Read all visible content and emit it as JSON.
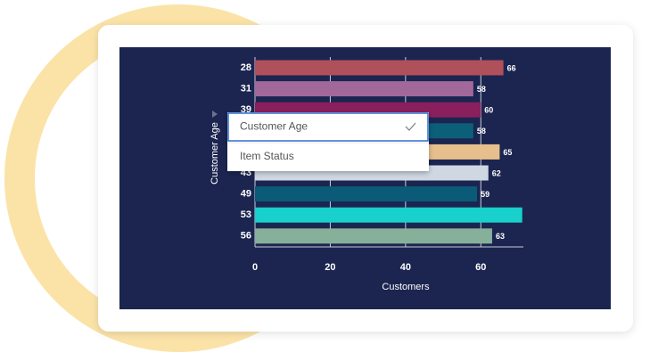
{
  "chart_data": {
    "type": "barh",
    "ylabel": "Customer Age",
    "xlabel": "Customers",
    "categories": [
      "28",
      "31",
      "39",
      null,
      null,
      "43",
      "49",
      "53",
      "56"
    ],
    "values": [
      66,
      58,
      60,
      58,
      65,
      62,
      59,
      71,
      63
    ],
    "colors": [
      "#b0505a",
      "#a3689a",
      "#8a1f5e",
      "#0c5f78",
      "#e6bf8c",
      "#cfd8e2",
      "#0a5a78",
      "#18d0cc",
      "#86b09a"
    ],
    "xlim": [
      0,
      71.3
    ],
    "xticks": [
      0,
      20,
      40,
      60
    ],
    "grid": true
  },
  "dropdown": {
    "options": [
      "Customer Age",
      "Item Status"
    ],
    "selected": 0
  }
}
